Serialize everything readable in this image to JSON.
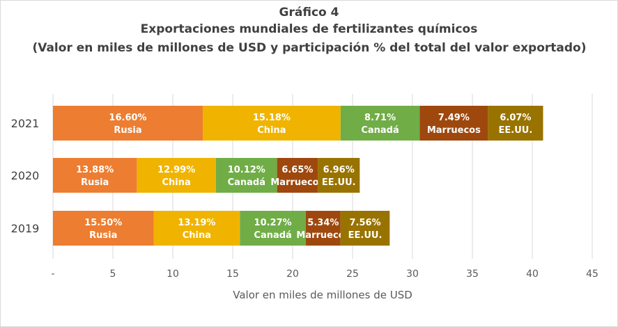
{
  "chart_data": {
    "type": "bar",
    "orientation": "horizontal",
    "stacked": true,
    "title": "Gráfico 4",
    "subtitle": "Exportaciones mundiales de fertilizantes químicos",
    "subtitle2": "(Valor en miles de millones de USD y participación % del total del valor exportado)",
    "xlabel": "Valor en miles de millones de USD",
    "ylabel": "",
    "xlim": [
      0,
      45
    ],
    "xticks": [
      0,
      5,
      10,
      15,
      20,
      25,
      30,
      35,
      40,
      45
    ],
    "xtick_labels": [
      "-",
      "5",
      "10",
      "15",
      "20",
      "25",
      "30",
      "35",
      "40",
      "45"
    ],
    "grid": true,
    "categories": [
      "2021",
      "2020",
      "2019"
    ],
    "series": [
      {
        "name": "Rusia",
        "color": "#ed7d31",
        "values": [
          12.5,
          7.0,
          8.4
        ],
        "labels": [
          "16.60%",
          "13.88%",
          "15.50%"
        ]
      },
      {
        "name": "China",
        "color": "#f0b400",
        "values": [
          11.5,
          6.6,
          7.2
        ],
        "labels": [
          "15.18%",
          "12.99%",
          "13.19%"
        ]
      },
      {
        "name": "Canadá",
        "color": "#70ad47",
        "values": [
          6.6,
          5.1,
          5.5
        ],
        "labels": [
          "8.71%",
          "10.12%",
          "10.27%"
        ]
      },
      {
        "name": "Marruecos",
        "color": "#9e480e",
        "values": [
          5.7,
          3.4,
          2.9
        ],
        "labels": [
          "7.49%",
          "6.65%",
          "5.34%"
        ]
      },
      {
        "name": "EE.UU.",
        "color": "#997300",
        "values": [
          4.6,
          3.5,
          4.1
        ],
        "labels": [
          "6.07%",
          "6.96%",
          "7.56%"
        ]
      }
    ]
  }
}
